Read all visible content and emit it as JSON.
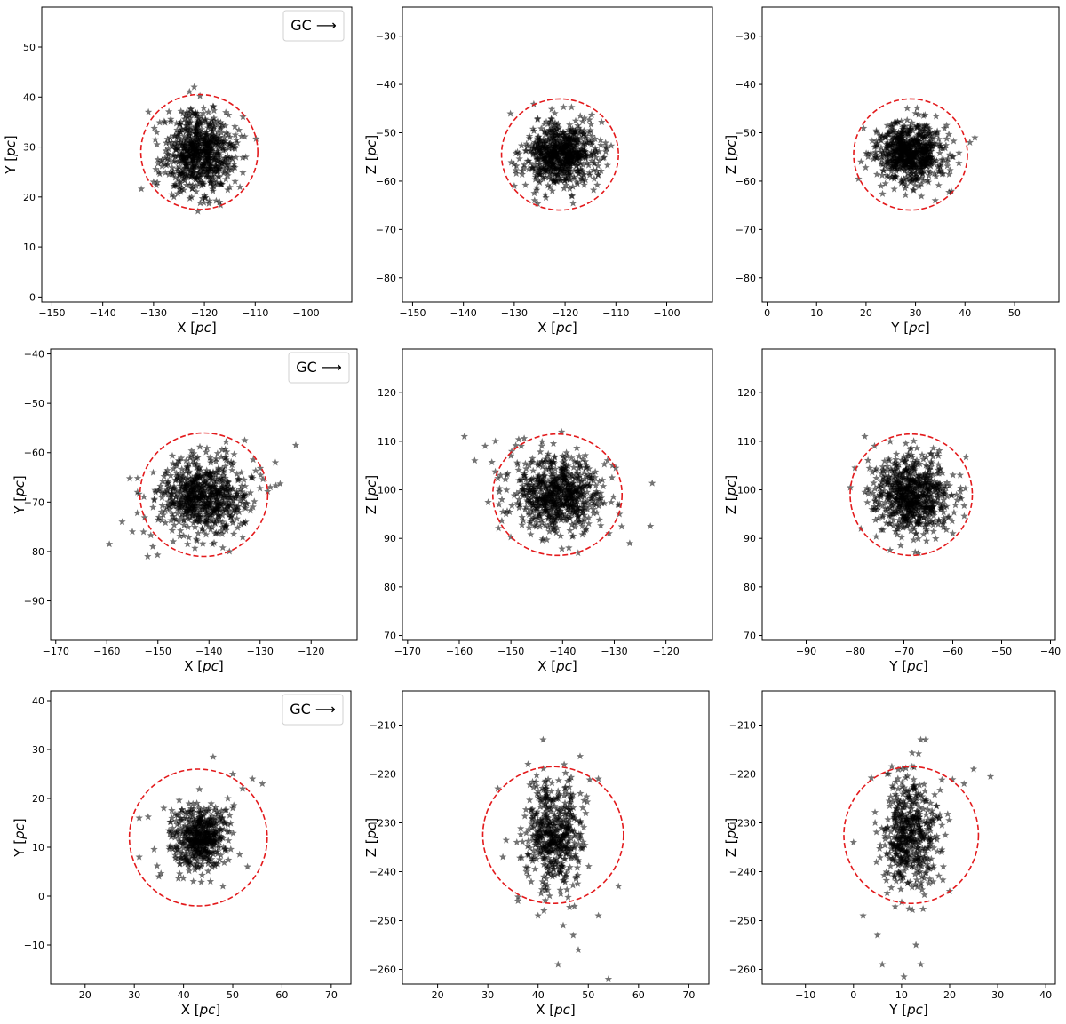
{
  "figure": {
    "marker_color": "#000000",
    "marker_opacity": 0.55,
    "circle_color": "#e31a1c",
    "legend_label": "GC ⟶"
  },
  "chart_data": [
    {
      "type": "scatter",
      "panel": "row1-xy",
      "xlabel": "X [pc]",
      "ylabel": "Y [pc]",
      "xlim": [
        -152,
        -91
      ],
      "ylim": [
        -1,
        58
      ],
      "xticks": [
        -150,
        -140,
        -130,
        -120,
        -110,
        -100
      ],
      "yticks": [
        0,
        10,
        20,
        30,
        40,
        50
      ],
      "center": [
        -121,
        29
      ],
      "radius": 11.5,
      "spread": [
        3.5,
        4.0
      ],
      "n": 700,
      "legend": "GC ⟶",
      "legend_position": "top-right",
      "grid": false,
      "outliers": [
        [
          -122,
          42
        ],
        [
          -131,
          37
        ],
        [
          -130,
          23
        ],
        [
          -126,
          20
        ],
        [
          -113,
          22
        ],
        [
          -117,
          19
        ]
      ]
    },
    {
      "type": "scatter",
      "panel": "row1-xz",
      "xlabel": "X [pc]",
      "ylabel": "Z [pc]",
      "xlim": [
        -152,
        -91
      ],
      "ylim": [
        -85,
        -24
      ],
      "xticks": [
        -150,
        -140,
        -130,
        -120,
        -110,
        -100
      ],
      "yticks": [
        -80,
        -70,
        -60,
        -50,
        -40,
        -30
      ],
      "center": [
        -121,
        -54.5
      ],
      "radius": 11.5,
      "spread": [
        3.5,
        3.2
      ],
      "n": 700,
      "grid": false,
      "outliers": [
        [
          -130,
          -61
        ],
        [
          -126,
          -64
        ],
        [
          -122,
          -46
        ],
        [
          -112,
          -53
        ]
      ]
    },
    {
      "type": "scatter",
      "panel": "row1-yz",
      "xlabel": "Y [pc]",
      "ylabel": "Z [pc]",
      "xlim": [
        -1,
        59
      ],
      "ylim": [
        -85,
        -24
      ],
      "xticks": [
        0,
        10,
        20,
        30,
        40,
        50
      ],
      "yticks": [
        -80,
        -70,
        -60,
        -50,
        -40,
        -30
      ],
      "center": [
        29,
        -54.5
      ],
      "radius": 11.5,
      "spread": [
        3.5,
        3.2
      ],
      "n": 700,
      "grid": false,
      "outliers": [
        [
          42,
          -51
        ],
        [
          41,
          -52
        ],
        [
          30,
          -46
        ],
        [
          23,
          -61
        ],
        [
          34,
          -64
        ],
        [
          19,
          -56
        ]
      ]
    },
    {
      "type": "scatter",
      "panel": "row2-xy",
      "xlabel": "X [pc]",
      "ylabel": "Y [pc]",
      "xlim": [
        -171,
        -111
      ],
      "ylim": [
        -98,
        -39
      ],
      "xticks": [
        -170,
        -160,
        -150,
        -140,
        -130,
        -120
      ],
      "yticks": [
        -90,
        -80,
        -70,
        -60,
        -50,
        -40
      ],
      "center": [
        -141,
        -68.5
      ],
      "radius": 12.5,
      "spread": [
        4.5,
        3.8
      ],
      "n": 700,
      "legend": "GC ⟶",
      "legend_position": "top-right",
      "grid": false,
      "outliers": [
        [
          -159.5,
          -78.5
        ],
        [
          -157,
          -74
        ],
        [
          -155,
          -76
        ],
        [
          -152,
          -81
        ],
        [
          -151,
          -79
        ],
        [
          -154,
          -68
        ],
        [
          -147,
          -78
        ],
        [
          -133,
          -57.5
        ],
        [
          -127,
          -62
        ],
        [
          -123,
          -58.5
        ],
        [
          -128,
          -67
        ],
        [
          -136,
          -80
        ]
      ]
    },
    {
      "type": "scatter",
      "panel": "row2-xz",
      "xlabel": "X [pc]",
      "ylabel": "Z [pc]",
      "xlim": [
        -171,
        -111
      ],
      "ylim": [
        69,
        129
      ],
      "xticks": [
        -170,
        -160,
        -150,
        -140,
        -130,
        -120
      ],
      "yticks": [
        70,
        80,
        90,
        100,
        110,
        120
      ],
      "center": [
        -141,
        99
      ],
      "radius": 12.5,
      "spread": [
        4.5,
        3.8
      ],
      "n": 700,
      "grid": false,
      "outliers": [
        [
          -159,
          111
        ],
        [
          -157,
          106
        ],
        [
          -155,
          109
        ],
        [
          -153,
          110
        ],
        [
          -152,
          103
        ],
        [
          -150,
          107
        ],
        [
          -148,
          109
        ],
        [
          -129,
          95
        ],
        [
          -127,
          89
        ],
        [
          -123,
          92.5
        ],
        [
          -131,
          91
        ],
        [
          -137,
          87
        ]
      ]
    },
    {
      "type": "scatter",
      "panel": "row2-yz",
      "xlabel": "Y [pc]",
      "ylabel": "Z [pc]",
      "xlim": [
        -99,
        -39
      ],
      "ylim": [
        69,
        129
      ],
      "xticks": [
        -90,
        -80,
        -70,
        -60,
        -50,
        -40
      ],
      "yticks": [
        70,
        80,
        90,
        100,
        110,
        120
      ],
      "center": [
        -68.5,
        99
      ],
      "radius": 12.5,
      "spread": [
        3.8,
        3.8
      ],
      "n": 700,
      "grid": false,
      "outliers": [
        [
          -80,
          104.5
        ],
        [
          -78,
          111
        ],
        [
          -76,
          109
        ],
        [
          -58.5,
          103
        ],
        [
          -62,
          93
        ],
        [
          -60,
          91
        ],
        [
          -67,
          87
        ],
        [
          -73,
          106
        ]
      ]
    },
    {
      "type": "scatter",
      "panel": "row3-xy",
      "xlabel": "X [pc]",
      "ylabel": "Y [pc]",
      "xlim": [
        13,
        74
      ],
      "ylim": [
        -18,
        42
      ],
      "xticks": [
        20,
        30,
        40,
        50,
        60,
        70
      ],
      "yticks": [
        -10,
        0,
        10,
        20,
        30,
        40
      ],
      "center": [
        43,
        12
      ],
      "radius": 14,
      "spread": [
        3.0,
        3.2
      ],
      "n": 500,
      "legend": "GC ⟶",
      "legend_position": "top-right",
      "grid": false,
      "outliers": [
        [
          46,
          28.5
        ],
        [
          56,
          23
        ],
        [
          54,
          24
        ],
        [
          52,
          22
        ],
        [
          50,
          25
        ],
        [
          31,
          16
        ],
        [
          31,
          8
        ],
        [
          35,
          4
        ],
        [
          42,
          3
        ],
        [
          48,
          2
        ],
        [
          53,
          6
        ],
        [
          50,
          18
        ],
        [
          49,
          20
        ],
        [
          36,
          18
        ]
      ]
    },
    {
      "type": "scatter",
      "panel": "row3-xz",
      "xlabel": "X [pc]",
      "ylabel": "Z [pc]",
      "xlim": [
        13,
        74
      ],
      "ylim": [
        -263,
        -203
      ],
      "xticks": [
        20,
        30,
        40,
        50,
        60,
        70
      ],
      "yticks": [
        -260,
        -250,
        -240,
        -230,
        -220,
        -210
      ],
      "center": [
        43,
        -232.5
      ],
      "radius": 14,
      "spread": [
        2.8,
        5.5
      ],
      "n": 500,
      "grid": false,
      "outliers": [
        [
          41,
          -213
        ],
        [
          38,
          -218
        ],
        [
          54,
          -262
        ],
        [
          48,
          -256
        ],
        [
          44,
          -259
        ],
        [
          47,
          -253
        ],
        [
          52,
          -249
        ],
        [
          36,
          -246
        ],
        [
          32,
          -223
        ],
        [
          33,
          -237
        ],
        [
          52,
          -221
        ],
        [
          56,
          -243
        ],
        [
          40,
          -249
        ],
        [
          45,
          -251
        ]
      ]
    },
    {
      "type": "scatter",
      "panel": "row3-yz",
      "xlabel": "Y [pc]",
      "ylabel": "Z [pc]",
      "xlim": [
        -19,
        42
      ],
      "ylim": [
        -263,
        -203
      ],
      "xticks": [
        -10,
        0,
        10,
        20,
        30,
        40
      ],
      "yticks": [
        -260,
        -250,
        -240,
        -230,
        -220,
        -210
      ],
      "center": [
        12,
        -232.5
      ],
      "radius": 14,
      "spread": [
        3.0,
        5.5
      ],
      "n": 500,
      "grid": false,
      "outliers": [
        [
          10.5,
          -261.5
        ],
        [
          6,
          -259
        ],
        [
          14,
          -259
        ],
        [
          13,
          -255
        ],
        [
          5,
          -253
        ],
        [
          2,
          -249
        ],
        [
          0,
          -234
        ],
        [
          28.5,
          -220.5
        ],
        [
          25,
          -219
        ],
        [
          23,
          -222
        ],
        [
          15,
          -213
        ],
        [
          14,
          -213
        ],
        [
          7,
          -220
        ],
        [
          20,
          -244
        ]
      ]
    }
  ]
}
